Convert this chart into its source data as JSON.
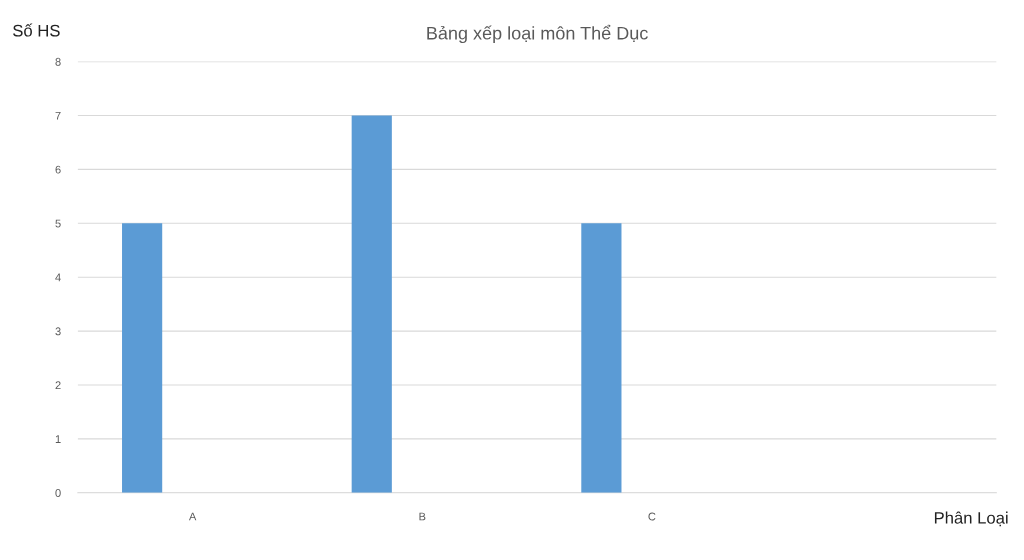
{
  "chart_data": {
    "type": "bar",
    "title": "Bảng xếp loại môn Thể Dục",
    "xlabel": "Phân Loại",
    "ylabel": "Số HS",
    "categories": [
      "A",
      "B",
      "C",
      null
    ],
    "values": [
      5,
      7,
      5,
      null
    ],
    "color": "#5b9bd5",
    "ylim": [
      0,
      8
    ],
    "yticks": [
      0,
      1,
      2,
      3,
      4,
      5,
      6,
      7,
      8
    ],
    "grid": "y",
    "legend": false
  }
}
